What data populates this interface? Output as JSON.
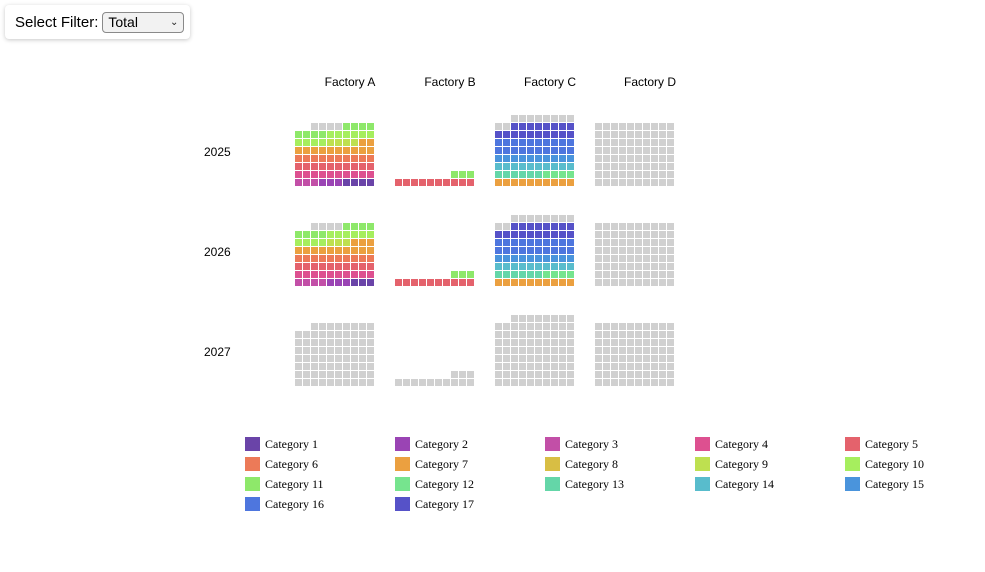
{
  "filter": {
    "label": "Select Filter:",
    "selected": "Total",
    "icon": "chevron-down-icon"
  },
  "colors": {
    "empty": "#d0d0d0",
    "categories": [
      "#6a44a8",
      "#9a44b4",
      "#c24fa7",
      "#dd5090",
      "#e4626c",
      "#ec7a58",
      "#eba040",
      "#d8be44",
      "#bee050",
      "#a6ee5e",
      "#8ee86a",
      "#76e48e",
      "#64d6a8",
      "#58bccc",
      "#4a94dc",
      "#4e76de",
      "#5652c8"
    ]
  },
  "chart_data": {
    "type": "waffle",
    "title": "",
    "columns": [
      "Factory A",
      "Factory B",
      "Factory C",
      "Factory D"
    ],
    "rows": [
      "2025",
      "2026",
      "2027"
    ],
    "grid_columns": 10,
    "legend": [
      "Category 1",
      "Category 2",
      "Category 3",
      "Category 4",
      "Category 5",
      "Category 6",
      "Category 7",
      "Category 8",
      "Category 9",
      "Category 10",
      "Category 11",
      "Category 12",
      "Category 13",
      "Category 14",
      "Category 15",
      "Category 16",
      "Category 17"
    ],
    "cells": [
      [
        {
          "total": 78,
          "filled": [
            {
              "category": 1,
              "count": 4
            },
            {
              "category": 2,
              "count": 3
            },
            {
              "category": 3,
              "count": 3
            },
            {
              "category": 4,
              "count": 10
            },
            {
              "category": 5,
              "count": 10
            },
            {
              "category": 6,
              "count": 10
            },
            {
              "category": 7,
              "count": 12
            },
            {
              "category": 9,
              "count": 4
            },
            {
              "category": 10,
              "count": 10
            },
            {
              "category": 11,
              "count": 8
            }
          ]
        },
        {
          "total": 13,
          "filled": [
            {
              "category": 5,
              "count": 10
            },
            {
              "category": 11,
              "count": 3
            }
          ]
        },
        {
          "total": 88,
          "filled": [
            {
              "category": 7,
              "count": 10
            },
            {
              "category": 12,
              "count": 4
            },
            {
              "category": 13,
              "count": 6
            },
            {
              "category": 14,
              "count": 10
            },
            {
              "category": 15,
              "count": 10
            },
            {
              "category": 16,
              "count": 20
            },
            {
              "category": 17,
              "count": 18
            }
          ]
        },
        {
          "total": 80,
          "filled": []
        }
      ],
      [
        {
          "total": 78,
          "filled": [
            {
              "category": 1,
              "count": 3
            },
            {
              "category": 2,
              "count": 3
            },
            {
              "category": 3,
              "count": 4
            },
            {
              "category": 4,
              "count": 10
            },
            {
              "category": 5,
              "count": 10
            },
            {
              "category": 6,
              "count": 10
            },
            {
              "category": 7,
              "count": 13
            },
            {
              "category": 9,
              "count": 3
            },
            {
              "category": 10,
              "count": 10
            },
            {
              "category": 11,
              "count": 8
            }
          ]
        },
        {
          "total": 13,
          "filled": [
            {
              "category": 5,
              "count": 10
            },
            {
              "category": 11,
              "count": 3
            }
          ]
        },
        {
          "total": 88,
          "filled": [
            {
              "category": 7,
              "count": 10
            },
            {
              "category": 12,
              "count": 4
            },
            {
              "category": 13,
              "count": 6
            },
            {
              "category": 14,
              "count": 10
            },
            {
              "category": 15,
              "count": 10
            },
            {
              "category": 16,
              "count": 20
            },
            {
              "category": 17,
              "count": 18
            }
          ]
        },
        {
          "total": 80,
          "filled": []
        }
      ],
      [
        {
          "total": 78,
          "filled": []
        },
        {
          "total": 13,
          "filled": []
        },
        {
          "total": 88,
          "filled": []
        },
        {
          "total": 80,
          "filled": []
        }
      ]
    ]
  }
}
